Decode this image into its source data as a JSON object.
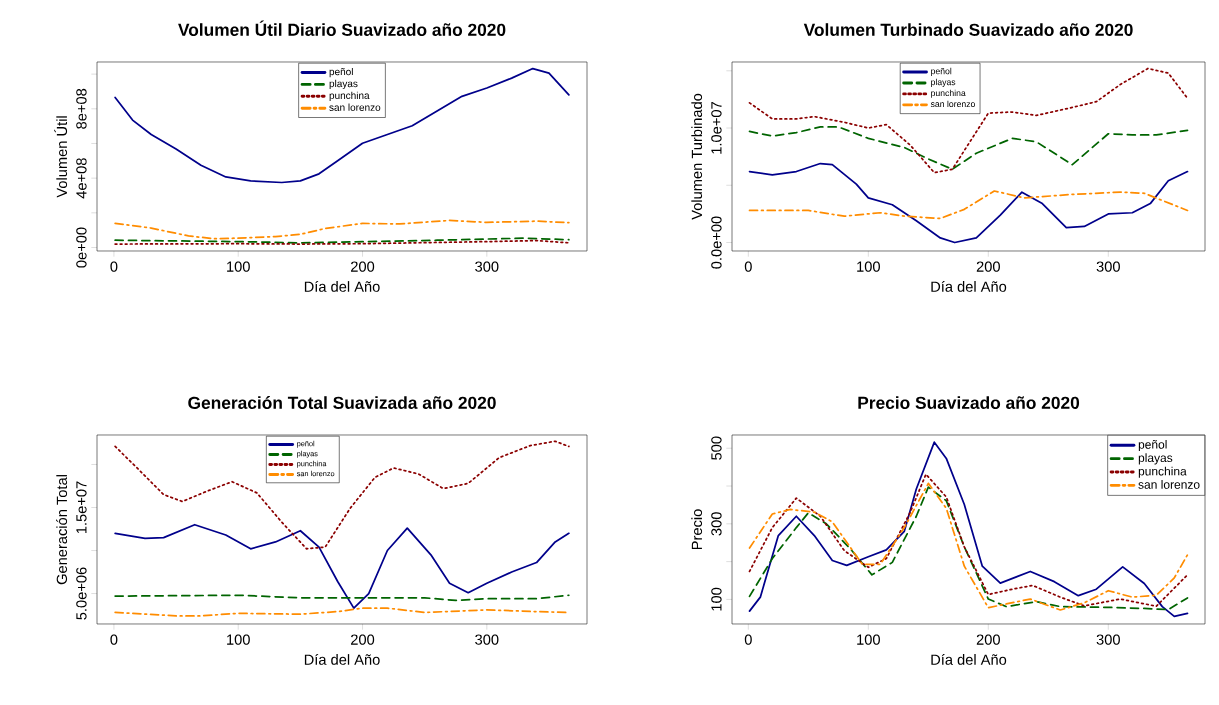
{
  "chart_data": [
    {
      "type": "line",
      "title": "Volumen Útil Diario Suavizado año 2020",
      "xlabel": "Día del Año",
      "ylabel": "Volumen Útil",
      "legend": "top",
      "xlim": [
        -13.6,
        380.6
      ],
      "ylim": [
        -20000000.0,
        1070000000.0
      ],
      "xticks": [
        0,
        100,
        200,
        300
      ],
      "yticks": [
        {
          "value": 0,
          "label": "0e+00"
        },
        {
          "value": 200000000.0,
          "label": null
        },
        {
          "value": 400000000.0,
          "label": "4e+08"
        },
        {
          "value": 600000000.0,
          "label": null
        },
        {
          "value": 800000000.0,
          "label": "8e+08"
        },
        {
          "value": 1000000000.0,
          "label": null
        }
      ],
      "series": [
        {
          "name": "peñol",
          "color": "#00008b",
          "line_style": "solid",
          "x": [
            1,
            15,
            30,
            50,
            70,
            90,
            110,
            135,
            150,
            165,
            180,
            200,
            220,
            240,
            260,
            280,
            300,
            320,
            337,
            350,
            366
          ],
          "values": [
            865000000.0,
            735000000.0,
            652000000.0,
            568000000.0,
            474000000.0,
            407000000.0,
            384000000.0,
            375000000.0,
            384000000.0,
            425000000.0,
            500000000.0,
            601000000.0,
            652000000.0,
            702000000.0,
            787000000.0,
            872000000.0,
            920000000.0,
            977000000.0,
            1032000000.0,
            1006000000.0,
            880000000.0
          ]
        },
        {
          "name": "playas",
          "color": "#006400",
          "line_style": "dashed",
          "x": [
            1,
            100,
            150,
            200,
            260,
            330,
            366
          ],
          "values": [
            42000000.0,
            34000000.0,
            27000000.0,
            34000000.0,
            42000000.0,
            54000000.0,
            45000000.0
          ]
        },
        {
          "name": "punchina",
          "color": "#8b0000",
          "line_style": "dotted",
          "x": [
            1,
            100,
            150,
            200,
            300,
            340,
            366
          ],
          "values": [
            20000000.0,
            22000000.0,
            20000000.0,
            22000000.0,
            34000000.0,
            40000000.0,
            27000000.0
          ]
        },
        {
          "name": "san lorenzo",
          "color": "#ff8c00",
          "line_style": "dashdot",
          "x": [
            1,
            30,
            60,
            80,
            100,
            130,
            150,
            170,
            200,
            230,
            270,
            300,
            340,
            366
          ],
          "values": [
            139000000.0,
            112000000.0,
            67000000.0,
            51000000.0,
            54000000.0,
            63000000.0,
            76000000.0,
            110000000.0,
            139000000.0,
            136000000.0,
            156000000.0,
            145000000.0,
            152000000.0,
            143000000.0
          ]
        }
      ]
    },
    {
      "type": "line",
      "title": "Volumen Turbinado Suavizado año 2020",
      "xlabel": "Día del Año",
      "ylabel": "Volumen Turbinado",
      "legend": "top",
      "xlim": [
        -13.6,
        380.6
      ],
      "ylim": [
        -740000.0,
        15770000.0
      ],
      "xticks": [
        0,
        100,
        200,
        300
      ],
      "yticks": [
        {
          "value": 0,
          "label": "0.0e+00"
        },
        {
          "value": 5000000.0,
          "label": null
        },
        {
          "value": 10000000.0,
          "label": "1.0e+07"
        },
        {
          "value": 15000000.0,
          "label": null
        }
      ],
      "series": [
        {
          "name": "peñol",
          "color": "#00008b",
          "line_style": "solid",
          "x": [
            1,
            20,
            40,
            60,
            70,
            90,
            100,
            120,
            140,
            160,
            172,
            190,
            210,
            228,
            245,
            265,
            280,
            300,
            320,
            335,
            350,
            366
          ],
          "values": [
            6200000.0,
            5900000.0,
            6200000.0,
            6900000.0,
            6800000.0,
            5100000.0,
            3900000.0,
            3300000.0,
            1900000.0,
            400000.0,
            0,
            400000.0,
            2400000.0,
            4400000.0,
            3400000.0,
            1300000.0,
            1400000.0,
            2500000.0,
            2600000.0,
            3400000.0,
            5400000.0,
            6200000.0
          ]
        },
        {
          "name": "playas",
          "color": "#006400",
          "line_style": "dashed",
          "x": [
            1,
            20,
            40,
            60,
            75,
            100,
            130,
            150,
            170,
            190,
            220,
            240,
            270,
            300,
            320,
            340,
            366
          ],
          "values": [
            9700000.0,
            9300000.0,
            9600000.0,
            10100000.0,
            10100000.0,
            9100000.0,
            8300000.0,
            7300000.0,
            6400000.0,
            7800000.0,
            9100000.0,
            8800000.0,
            6800000.0,
            9500000.0,
            9400000.0,
            9400000.0,
            9800000.0
          ]
        },
        {
          "name": "punchina",
          "color": "#8b0000",
          "line_style": "dotted",
          "x": [
            1,
            20,
            40,
            55,
            80,
            100,
            115,
            135,
            155,
            170,
            200,
            220,
            240,
            270,
            290,
            310,
            333,
            350,
            366
          ],
          "values": [
            12200000.0,
            10800000.0,
            10800000.0,
            11000000.0,
            10500000.0,
            10000000.0,
            10300000.0,
            8500000.0,
            6100000.0,
            6400000.0,
            11300000.0,
            11400000.0,
            11100000.0,
            11800000.0,
            12300000.0,
            13800000.0,
            15200000.0,
            14800000.0,
            12600000.0
          ]
        },
        {
          "name": "san lorenzo",
          "color": "#ff8c00",
          "line_style": "dashdot",
          "x": [
            1,
            50,
            80,
            110,
            130,
            160,
            180,
            205,
            230,
            270,
            310,
            330,
            366
          ],
          "values": [
            2800000.0,
            2800000.0,
            2300000.0,
            2600000.0,
            2300000.0,
            2100000.0,
            2900000.0,
            4500000.0,
            3900000.0,
            4200000.0,
            4400000.0,
            4300000.0,
            2800000.0
          ]
        }
      ]
    },
    {
      "type": "line",
      "title": "Generación Total Suavizada año 2020",
      "xlabel": "Día del Año",
      "ylabel": "Generación Total",
      "legend": "top",
      "xlim": [
        -13.6,
        380.6
      ],
      "ylim": [
        1460000.0,
        23430000.0
      ],
      "xticks": [
        0,
        100,
        200,
        300
      ],
      "yticks": [
        {
          "value": 5000000.0,
          "label": "5.0e+06"
        },
        {
          "value": 10000000.0,
          "label": null
        },
        {
          "value": 15000000.0,
          "label": "1.5e+07"
        },
        {
          "value": 20000000.0,
          "label": null
        }
      ],
      "series": [
        {
          "name": "peñol",
          "color": "#00008b",
          "line_style": "solid",
          "x": [
            1,
            25,
            40,
            65,
            90,
            110,
            130,
            150,
            165,
            180,
            193,
            205,
            220,
            236,
            255,
            270,
            285,
            300,
            320,
            340,
            355,
            366
          ],
          "values": [
            12000000.0,
            11400000.0,
            11500000.0,
            13000000.0,
            11800000.0,
            10200000.0,
            11000000.0,
            12300000.0,
            10400000.0,
            6400000.0,
            3300000.0,
            5000000.0,
            10000000.0,
            12600000.0,
            9500000.0,
            6200000.0,
            5100000.0,
            6200000.0,
            7500000.0,
            8600000.0,
            11000000.0,
            12000000.0
          ]
        },
        {
          "name": "playas",
          "color": "#006400",
          "line_style": "dashed",
          "x": [
            1,
            100,
            150,
            200,
            250,
            275,
            300,
            340,
            366
          ],
          "values": [
            4700000.0,
            4800000.0,
            4500000.0,
            4500000.0,
            4500000.0,
            4200000.0,
            4400000.0,
            4400000.0,
            4800000.0
          ]
        },
        {
          "name": "punchina",
          "color": "#8b0000",
          "line_style": "dotted",
          "x": [
            1,
            20,
            40,
            55,
            75,
            95,
            115,
            135,
            155,
            170,
            190,
            210,
            225,
            245,
            265,
            285,
            310,
            335,
            355,
            366
          ],
          "values": [
            22100000.0,
            19400000.0,
            16500000.0,
            15700000.0,
            16900000.0,
            18000000.0,
            16700000.0,
            13300000.0,
            10200000.0,
            10400000.0,
            14900000.0,
            18500000.0,
            19600000.0,
            18900000.0,
            17200000.0,
            17800000.0,
            20800000.0,
            22200000.0,
            22700000.0,
            22100000.0
          ]
        },
        {
          "name": "san lorenzo",
          "color": "#ff8c00",
          "line_style": "dashdot",
          "x": [
            1,
            50,
            70,
            100,
            150,
            180,
            200,
            220,
            250,
            300,
            340,
            366
          ],
          "values": [
            2800000.0,
            2400000.0,
            2400000.0,
            2700000.0,
            2600000.0,
            2900000.0,
            3300000.0,
            3300000.0,
            2800000.0,
            3100000.0,
            2900000.0,
            2800000.0
          ]
        }
      ]
    },
    {
      "type": "line",
      "title": "Precio Suavizado año 2020",
      "xlabel": "Día del Año",
      "ylabel": "Precio",
      "legend": "top right",
      "xlim": [
        -13.6,
        380.6
      ],
      "ylim": [
        35,
        535
      ],
      "xticks": [
        0,
        100,
        200,
        300
      ],
      "yticks": [
        100,
        {
          "value": 200,
          "label": null
        },
        300,
        {
          "value": 400,
          "label": null
        },
        500
      ],
      "series": [
        {
          "name": "peñol",
          "color": "#00008b",
          "line_style": "solid",
          "x": [
            1,
            10,
            25,
            40,
            55,
            70,
            82,
            100,
            115,
            130,
            140,
            155,
            165,
            180,
            195,
            210,
            235,
            255,
            275,
            290,
            312,
            330,
            345,
            355,
            366
          ],
          "values": [
            69,
            106,
            269,
            320,
            269,
            203,
            190,
            213,
            231,
            280,
            392,
            516,
            473,
            351,
            188,
            143,
            174,
            147,
            110,
            127,
            186,
            142,
            81,
            55,
            63
          ]
        },
        {
          "name": "playas",
          "color": "#006400",
          "line_style": "dashed",
          "x": [
            1,
            20,
            40,
            50,
            65,
            85,
            103,
            120,
            140,
            150,
            165,
            180,
            200,
            215,
            240,
            260,
            300,
            330,
            350,
            366
          ],
          "values": [
            108,
            208,
            290,
            329,
            300,
            234,
            165,
            198,
            320,
            397,
            361,
            239,
            101,
            81,
            94,
            81,
            79,
            76,
            73,
            104
          ]
        },
        {
          "name": "punchina",
          "color": "#8b0000",
          "line_style": "dotted",
          "x": [
            1,
            20,
            40,
            60,
            80,
            100,
            115,
            135,
            148,
            165,
            180,
            200,
            220,
            237,
            260,
            280,
            310,
            340,
            366
          ],
          "values": [
            174,
            290,
            368,
            320,
            229,
            185,
            208,
            331,
            431,
            371,
            239,
            113,
            127,
            137,
            106,
            83,
            101,
            82,
            165
          ]
        },
        {
          "name": "san lorenzo",
          "color": "#ff8c00",
          "line_style": "dashdot",
          "x": [
            1,
            20,
            35,
            55,
            70,
            95,
            110,
            130,
            150,
            165,
            180,
            200,
            215,
            235,
            260,
            280,
            300,
            320,
            340,
            355,
            366
          ],
          "values": [
            236,
            326,
            338,
            331,
            305,
            193,
            193,
            290,
            407,
            341,
            188,
            78,
            88,
            101,
            72,
            91,
            123,
            106,
            111,
            157,
            218
          ]
        }
      ]
    }
  ]
}
